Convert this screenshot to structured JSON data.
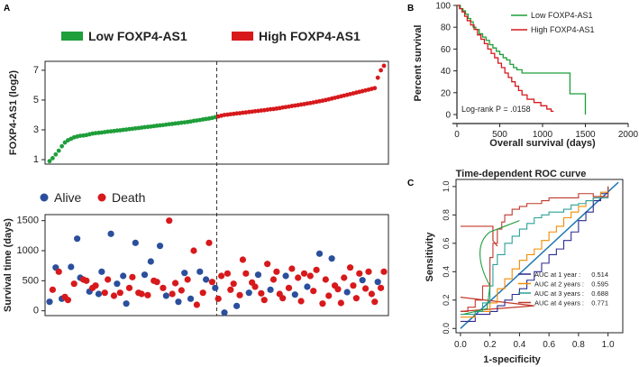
{
  "panels": {
    "a_label": "A",
    "b_label": "B",
    "c_label": "C"
  },
  "colors": {
    "low": "#1f9e3a",
    "high": "#d7191c",
    "alive": "#2b4f9c",
    "death": "#d7191c",
    "roc_1y": "#2b2b8f",
    "roc_2y": "#f08c00",
    "roc_3y": "#2aa198",
    "roc_4y": "#c0392b",
    "roc_green": "#1f9e3a",
    "diag": "#1f77b4"
  },
  "chart_data": [
    {
      "id": "expression",
      "type": "line",
      "legend": [
        "Low FOXP4-AS1",
        "High FOXP4-AS1"
      ],
      "ylabel": "FOXP4-AS1 (log2)",
      "yticks": [
        1,
        3,
        5,
        7
      ],
      "ylim": [
        0.7,
        7.6
      ],
      "n_samples": 110,
      "cutoff_index": 55,
      "values": [
        0.9,
        1.1,
        1.35,
        1.6,
        1.9,
        2.15,
        2.3,
        2.4,
        2.5,
        2.55,
        2.6,
        2.62,
        2.65,
        2.7,
        2.75,
        2.78,
        2.8,
        2.82,
        2.85,
        2.88,
        2.9,
        2.92,
        2.95,
        2.97,
        3.0,
        3.02,
        3.05,
        3.07,
        3.1,
        3.12,
        3.15,
        3.18,
        3.2,
        3.22,
        3.25,
        3.28,
        3.3,
        3.32,
        3.35,
        3.38,
        3.4,
        3.43,
        3.45,
        3.48,
        3.5,
        3.53,
        3.56,
        3.6,
        3.63,
        3.66,
        3.7,
        3.73,
        3.76,
        3.8,
        3.85,
        3.9,
        3.95,
        4.0,
        4.02,
        4.05,
        4.07,
        4.1,
        4.12,
        4.15,
        4.17,
        4.2,
        4.22,
        4.25,
        4.27,
        4.3,
        4.32,
        4.35,
        4.38,
        4.4,
        4.43,
        4.46,
        4.5,
        4.53,
        4.56,
        4.6,
        4.63,
        4.66,
        4.7,
        4.73,
        4.77,
        4.8,
        4.84,
        4.88,
        4.92,
        4.96,
        5.0,
        5.05,
        5.1,
        5.15,
        5.2,
        5.25,
        5.3,
        5.35,
        5.4,
        5.45,
        5.5,
        5.55,
        5.6,
        5.65,
        5.7,
        5.75,
        5.8,
        6.5,
        7.0,
        7.3
      ]
    },
    {
      "id": "survival_scatter",
      "type": "scatter",
      "legend": [
        "Alive",
        "Death"
      ],
      "ylabel": "Survival time (days)",
      "yticks": [
        0,
        500,
        1000,
        1500
      ],
      "ylim": [
        -80,
        1600
      ],
      "status": [
        "alive",
        "death",
        "alive",
        "death",
        "alive",
        "death",
        "death",
        "alive",
        "death",
        "alive",
        "alive",
        "death",
        "death",
        "alive",
        "death",
        "death",
        "alive",
        "alive",
        "death",
        "death",
        "alive",
        "death",
        "alive",
        "death",
        "alive",
        "alive",
        "death",
        "death",
        "alive",
        "death",
        "death",
        "alive",
        "death",
        "alive",
        "death",
        "death",
        "alive",
        "death",
        "alive",
        "death",
        "death",
        "death",
        "alive",
        "death",
        "alive",
        "death",
        "alive",
        "death",
        "death",
        "alive",
        "death",
        "alive",
        "death",
        "death",
        "alive",
        "death",
        "death",
        "alive",
        "death",
        "death",
        "death",
        "alive",
        "death",
        "death",
        "death",
        "alive",
        "death",
        "death",
        "alive",
        "death",
        "death",
        "death",
        "alive",
        "death",
        "death",
        "death",
        "death",
        "alive",
        "death",
        "death",
        "alive",
        "death",
        "death",
        "death",
        "alive",
        "death",
        "death",
        "death",
        "alive",
        "death",
        "death",
        "death",
        "alive",
        "death",
        "death",
        "death",
        "death",
        "alive",
        "death",
        "death",
        "death",
        "death",
        "alive",
        "death",
        "death",
        "death",
        "death",
        "alive",
        "death",
        "death"
      ],
      "values": [
        150,
        350,
        720,
        650,
        200,
        230,
        180,
        730,
        450,
        1200,
        550,
        520,
        500,
        320,
        380,
        420,
        280,
        650,
        300,
        520,
        1280,
        250,
        450,
        300,
        580,
        120,
        380,
        560,
        1130,
        300,
        280,
        600,
        260,
        820,
        500,
        480,
        1080,
        380,
        250,
        1500,
        280,
        460,
        150,
        340,
        630,
        520,
        200,
        1000,
        100,
        650,
        300,
        520,
        1130,
        480,
        380,
        200,
        580,
        -30,
        620,
        350,
        450,
        80,
        260,
        850,
        620,
        300,
        470,
        400,
        600,
        290,
        180,
        780,
        350,
        520,
        650,
        280,
        210,
        580,
        380,
        700,
        270,
        550,
        160,
        620,
        400,
        580,
        330,
        680,
        950,
        120,
        520,
        250,
        870,
        420,
        360,
        130,
        550,
        310,
        720,
        420,
        210,
        620,
        510,
        370,
        650,
        280,
        150,
        480,
        380,
        650
      ]
    },
    {
      "id": "km",
      "type": "line",
      "xlabel": "Overall survival (days)",
      "ylabel": "Percent survival",
      "xticks": [
        0,
        500,
        1000,
        1500,
        2000
      ],
      "yticks": [
        0,
        20,
        40,
        60,
        80,
        100
      ],
      "xlim": [
        0,
        2000
      ],
      "ylim": [
        0,
        100
      ],
      "annotation": "Log-rank P = .0158",
      "series": [
        {
          "name": "Low FOXP4-AS1",
          "x": [
            0,
            40,
            70,
            100,
            130,
            160,
            190,
            220,
            260,
            300,
            340,
            380,
            420,
            460,
            500,
            540,
            580,
            620,
            660,
            700,
            760,
            820,
            880,
            1300,
            1320,
            1500,
            1500
          ],
          "y": [
            100,
            97,
            95,
            92,
            88,
            85,
            80,
            78,
            74,
            71,
            68,
            64,
            61,
            58,
            55,
            52,
            50,
            46,
            43,
            41,
            38,
            38,
            38,
            38,
            19,
            19,
            0
          ]
        },
        {
          "name": "High FOXP4-AS1",
          "x": [
            0,
            30,
            60,
            90,
            120,
            160,
            200,
            240,
            280,
            320,
            360,
            400,
            440,
            480,
            520,
            560,
            600,
            640,
            680,
            720,
            760,
            820,
            900,
            980,
            1050,
            1100,
            1130
          ],
          "y": [
            100,
            97,
            94,
            90,
            86,
            82,
            78,
            73,
            69,
            65,
            60,
            56,
            52,
            47,
            43,
            38,
            34,
            30,
            26,
            22,
            18,
            14,
            11,
            8,
            5,
            3,
            3
          ]
        }
      ]
    },
    {
      "id": "roc",
      "type": "line",
      "title": "Time-dependent ROC curve",
      "xlabel": "1-specificity",
      "ylabel": "Sensitivity",
      "xticks": [
        0.0,
        0.2,
        0.4,
        0.6,
        0.8,
        1.0
      ],
      "yticks": [
        0.0,
        0.2,
        0.4,
        0.6,
        0.8,
        1.0
      ],
      "xlim": [
        -0.03,
        1.1
      ],
      "ylim": [
        -0.03,
        1.05
      ],
      "series": [
        {
          "name": "AUC at 1 year",
          "auc": "0.514",
          "x": [
            0,
            0.1,
            0.2,
            0.25,
            0.3,
            0.35,
            0.4,
            0.45,
            0.5,
            0.55,
            0.6,
            0.65,
            0.7,
            0.75,
            0.8,
            0.85,
            0.9,
            0.95,
            1.0
          ],
          "y": [
            0.05,
            0.1,
            0.12,
            0.16,
            0.2,
            0.24,
            0.28,
            0.34,
            0.4,
            0.46,
            0.52,
            0.56,
            0.62,
            0.68,
            0.76,
            0.82,
            0.9,
            0.95,
            1.0
          ]
        },
        {
          "name": "AUC at 2 years",
          "auc": "0.595",
          "x": [
            0,
            0.1,
            0.2,
            0.25,
            0.3,
            0.35,
            0.4,
            0.45,
            0.5,
            0.55,
            0.6,
            0.65,
            0.7,
            0.75,
            0.8,
            0.85,
            0.9,
            0.95,
            1.0
          ],
          "y": [
            0.08,
            0.12,
            0.18,
            0.28,
            0.35,
            0.42,
            0.48,
            0.52,
            0.56,
            0.62,
            0.68,
            0.72,
            0.78,
            0.82,
            0.86,
            0.9,
            0.92,
            0.96,
            1.0
          ]
        },
        {
          "name": "AUC at 3 years",
          "auc": "0.688",
          "x": [
            0,
            0.1,
            0.15,
            0.2,
            0.22,
            0.25,
            0.3,
            0.35,
            0.4,
            0.45,
            0.5,
            0.55,
            0.6,
            0.7,
            0.75,
            0.8,
            0.85,
            0.9,
            1.0
          ],
          "y": [
            0.1,
            0.12,
            0.18,
            0.3,
            0.45,
            0.52,
            0.6,
            0.65,
            0.7,
            0.74,
            0.78,
            0.8,
            0.82,
            0.84,
            0.87,
            0.88,
            0.9,
            0.92,
            1.0
          ]
        },
        {
          "name": "AUC at 4 years",
          "auc": "0.771",
          "x": [
            0,
            0.05,
            0.1,
            0.15,
            0.2,
            0.22,
            0.25,
            0.28,
            0.3,
            0.35,
            0.4,
            0.45,
            0.5,
            0.55,
            0.6,
            0.7,
            0.8,
            0.9,
            1.0
          ],
          "y": [
            0.12,
            0.15,
            0.2,
            0.3,
            0.5,
            0.6,
            0.7,
            0.75,
            0.8,
            0.84,
            0.86,
            0.88,
            0.88,
            0.9,
            0.92,
            0.92,
            0.95,
            0.93,
            1.0
          ]
        }
      ]
    }
  ]
}
